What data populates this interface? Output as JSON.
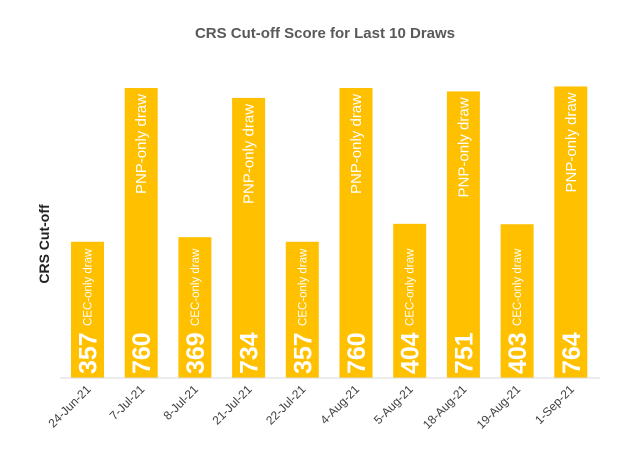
{
  "chart_data": {
    "type": "bar",
    "title": "CRS Cut-off Score for Last 10 Draws",
    "xlabel": "",
    "ylabel": "CRS Cut-off",
    "categories": [
      "24-Jun-21",
      "7-Jul-21",
      "8-Jul-21",
      "21-Jul-21",
      "22-Jul-21",
      "4-Aug-21",
      "5-Aug-21",
      "18-Aug-21",
      "19-Aug-21",
      "1-Sep-21"
    ],
    "values": [
      357,
      760,
      369,
      734,
      357,
      760,
      404,
      751,
      403,
      764
    ],
    "value_labels": [
      "357",
      "760",
      "369",
      "734",
      "357",
      "760",
      "404",
      "751",
      "403",
      "764"
    ],
    "annotations": [
      "CEC-only draw",
      "PNP-only draw",
      "CEC-only draw",
      "PNP-only draw",
      "CEC-only draw",
      "PNP-only draw",
      "CEC-only draw",
      "PNP-only draw",
      "CEC-only draw",
      "PNP-only draw"
    ],
    "ylim": [
      0,
      800
    ],
    "grid": false,
    "legend": "none",
    "bar_color": "#FFC000"
  }
}
